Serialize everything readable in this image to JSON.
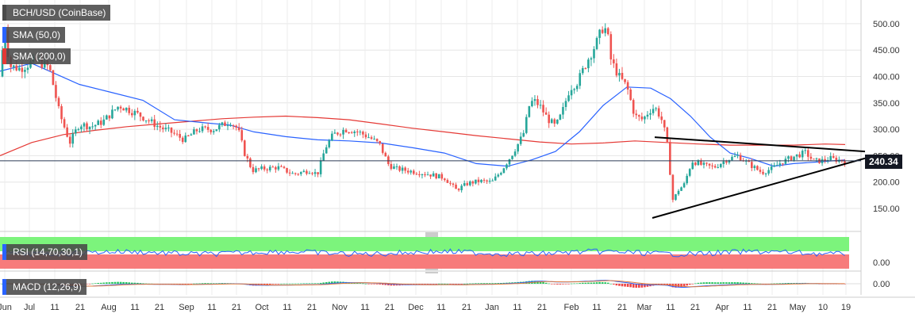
{
  "chart_data": [
    {
      "type": "candlestick",
      "title": "BCH/USD (CoinBase)",
      "y_ticks": [
        "150.00",
        "200.00",
        "250.00",
        "300.00",
        "350.00",
        "400.00",
        "450.00",
        "500.00"
      ],
      "ylim": [
        120,
        520
      ],
      "x_ticks": [
        "Jun",
        "Jul",
        "11",
        "21",
        "Aug",
        "11",
        "21",
        "Sep",
        "11",
        "21",
        "Oct",
        "11",
        "21",
        "Nov",
        "11",
        "21",
        "Dec",
        "11",
        "21",
        "Jan",
        "11",
        "21",
        "Feb",
        "11",
        "21",
        "Mar",
        "11",
        "21",
        "Apr",
        "11",
        "21",
        "May",
        "10",
        "19"
      ],
      "last_price": "240.34",
      "close_path": [
        [
          0,
          400
        ],
        [
          6,
          500
        ],
        [
          12,
          420
        ],
        [
          25,
          415
        ],
        [
          45,
          430
        ],
        [
          62,
          418
        ],
        [
          75,
          330
        ],
        [
          88,
          275
        ],
        [
          100,
          310
        ],
        [
          115,
          305
        ],
        [
          130,
          315
        ],
        [
          150,
          345
        ],
        [
          165,
          335
        ],
        [
          178,
          325
        ],
        [
          200,
          305
        ],
        [
          215,
          295
        ],
        [
          232,
          280
        ],
        [
          250,
          300
        ],
        [
          270,
          300
        ],
        [
          290,
          315
        ],
        [
          300,
          300
        ],
        [
          308,
          255
        ],
        [
          318,
          222
        ],
        [
          330,
          225
        ],
        [
          350,
          228
        ],
        [
          370,
          215
        ],
        [
          390,
          222
        ],
        [
          400,
          215
        ],
        [
          410,
          265
        ],
        [
          420,
          290
        ],
        [
          435,
          300
        ],
        [
          450,
          296
        ],
        [
          465,
          285
        ],
        [
          478,
          272
        ],
        [
          490,
          232
        ],
        [
          500,
          225
        ],
        [
          520,
          220
        ],
        [
          540,
          215
        ],
        [
          560,
          208
        ],
        [
          575,
          185
        ],
        [
          590,
          198
        ],
        [
          605,
          202
        ],
        [
          620,
          200
        ],
        [
          632,
          222
        ],
        [
          645,
          252
        ],
        [
          655,
          278
        ],
        [
          662,
          300
        ],
        [
          665,
          340
        ],
        [
          672,
          355
        ],
        [
          680,
          345
        ],
        [
          690,
          320
        ],
        [
          700,
          305
        ],
        [
          708,
          330
        ],
        [
          718,
          378
        ],
        [
          728,
          390
        ],
        [
          740,
          430
        ],
        [
          752,
          465
        ],
        [
          760,
          495
        ],
        [
          765,
          485
        ],
        [
          770,
          430
        ],
        [
          780,
          400
        ],
        [
          790,
          380
        ],
        [
          800,
          325
        ],
        [
          810,
          318
        ],
        [
          818,
          335
        ],
        [
          825,
          342
        ],
        [
          833,
          322
        ],
        [
          840,
          282
        ],
        [
          848,
          165
        ],
        [
          855,
          185
        ],
        [
          862,
          195
        ],
        [
          872,
          240
        ],
        [
          885,
          232
        ],
        [
          900,
          228
        ],
        [
          915,
          242
        ],
        [
          930,
          250
        ],
        [
          940,
          238
        ],
        [
          950,
          228
        ],
        [
          960,
          218
        ],
        [
          972,
          225
        ],
        [
          985,
          238
        ],
        [
          1000,
          248
        ],
        [
          1015,
          256
        ],
        [
          1025,
          240
        ],
        [
          1035,
          240
        ],
        [
          1045,
          245
        ],
        [
          1055,
          242
        ],
        [
          1065,
          240
        ]
      ],
      "sma_50": [
        [
          0,
          410
        ],
        [
          40,
          425
        ],
        [
          70,
          405
        ],
        [
          100,
          385
        ],
        [
          140,
          370
        ],
        [
          180,
          355
        ],
        [
          220,
          318
        ],
        [
          260,
          312
        ],
        [
          290,
          308
        ],
        [
          320,
          295
        ],
        [
          360,
          286
        ],
        [
          400,
          280
        ],
        [
          440,
          278
        ],
        [
          480,
          274
        ],
        [
          520,
          265
        ],
        [
          560,
          255
        ],
        [
          600,
          235
        ],
        [
          640,
          230
        ],
        [
          670,
          242
        ],
        [
          700,
          258
        ],
        [
          730,
          295
        ],
        [
          760,
          345
        ],
        [
          790,
          380
        ],
        [
          820,
          378
        ],
        [
          845,
          358
        ],
        [
          870,
          325
        ],
        [
          895,
          285
        ],
        [
          920,
          255
        ],
        [
          945,
          245
        ],
        [
          975,
          230
        ],
        [
          1000,
          235
        ],
        [
          1030,
          238
        ],
        [
          1065,
          242
        ]
      ],
      "sma_200": [
        [
          0,
          250
        ],
        [
          40,
          275
        ],
        [
          80,
          290
        ],
        [
          120,
          298
        ],
        [
          160,
          305
        ],
        [
          200,
          310
        ],
        [
          240,
          315
        ],
        [
          280,
          320
        ],
        [
          320,
          323
        ],
        [
          360,
          325
        ],
        [
          400,
          322
        ],
        [
          440,
          318
        ],
        [
          480,
          310
        ],
        [
          520,
          302
        ],
        [
          560,
          295
        ],
        [
          600,
          288
        ],
        [
          640,
          282
        ],
        [
          680,
          276
        ],
        [
          720,
          272
        ],
        [
          760,
          274
        ],
        [
          800,
          278
        ],
        [
          840,
          275
        ],
        [
          880,
          272
        ],
        [
          920,
          270
        ],
        [
          960,
          270
        ],
        [
          1000,
          270
        ],
        [
          1040,
          272
        ],
        [
          1065,
          271
        ]
      ],
      "trendlines": [
        {
          "from": [
            825,
            285
          ],
          "to": [
            1090,
            258
          ]
        },
        {
          "from": [
            822,
            132
          ],
          "to": [
            1090,
            245
          ]
        }
      ]
    },
    {
      "type": "line",
      "title": "RSI (14,70,30,1)",
      "y_ticks": [
        "0.00"
      ],
      "bands": {
        "overbought": 70,
        "oversold": 30
      }
    },
    {
      "type": "bar",
      "title": "MACD (12,26,9)",
      "y_ticks": [
        "0.00"
      ]
    }
  ],
  "colors": {
    "bullish": "#26a69a",
    "bearish": "#ef5350",
    "sma_50": "#2962ff",
    "sma_200": "#e53935",
    "trend": "#000000",
    "rsi_green": "#7cf47c",
    "rsi_red": "#f77b7b",
    "rsi_line": "#2962ff",
    "macd_line": "#2962ff",
    "signal_line": "#e57c3a"
  }
}
